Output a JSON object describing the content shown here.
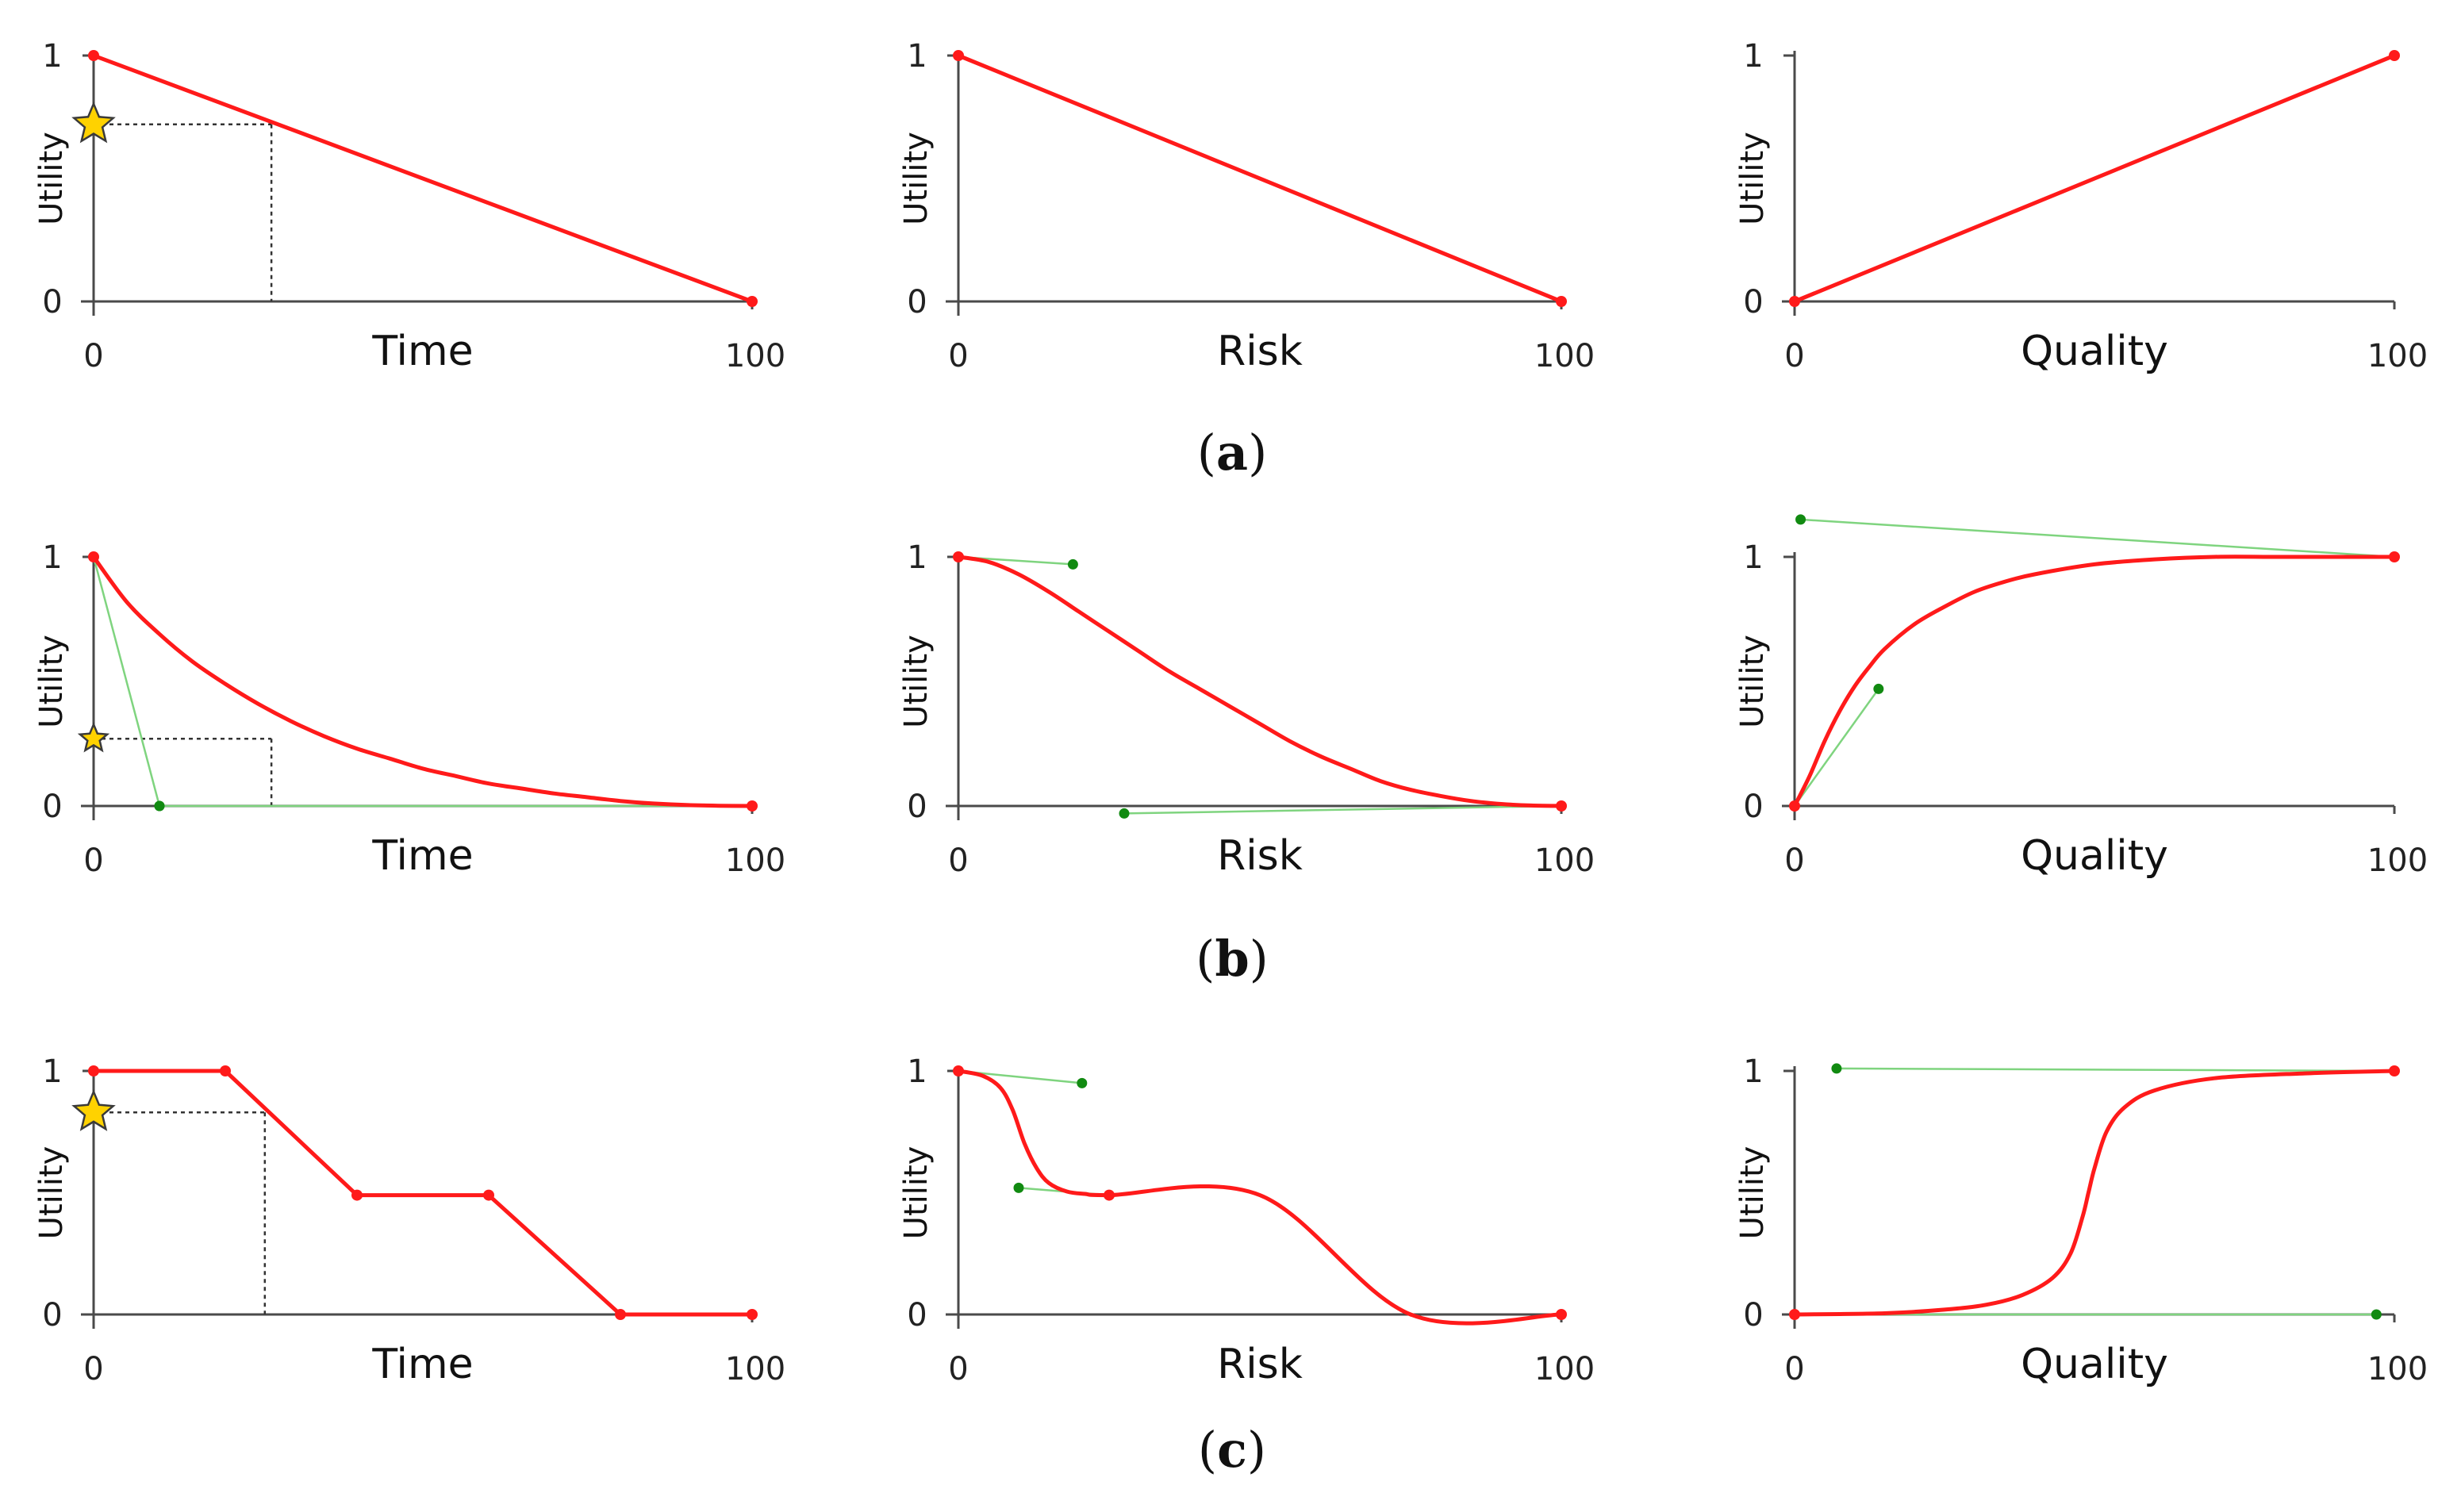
{
  "captions": [
    "a",
    "b",
    "c"
  ],
  "chart_data": [
    {
      "id": "a-time",
      "type": "line",
      "row": "a",
      "xlabel": "Time",
      "ylabel": "Utility",
      "xlim": [
        0,
        100
      ],
      "ylim": [
        0,
        1
      ],
      "xticks": [
        "0",
        "100"
      ],
      "yticks": [
        "0",
        "1"
      ],
      "series": [
        {
          "points": [
            [
              0,
              1
            ],
            [
              100,
              0
            ]
          ],
          "smooth": false
        }
      ],
      "handles": [],
      "marker": {
        "x": 27,
        "y": 0.72
      }
    },
    {
      "id": "a-risk",
      "type": "line",
      "row": "a",
      "xlabel": "Risk",
      "ylabel": "Utility",
      "xlim": [
        0,
        100
      ],
      "ylim": [
        0,
        1
      ],
      "xticks": [
        "0",
        "100"
      ],
      "yticks": [
        "0",
        "1"
      ],
      "series": [
        {
          "points": [
            [
              0,
              1
            ],
            [
              100,
              0
            ]
          ],
          "smooth": false
        }
      ],
      "handles": [],
      "marker": null
    },
    {
      "id": "a-quality",
      "type": "line",
      "row": "a",
      "xlabel": "Quality",
      "ylabel": "Utility",
      "xlim": [
        0,
        100
      ],
      "ylim": [
        0,
        1
      ],
      "xticks": [
        "0",
        "100"
      ],
      "yticks": [
        "0",
        "1"
      ],
      "series": [
        {
          "points": [
            [
              0,
              0
            ],
            [
              100,
              1
            ]
          ],
          "smooth": false
        }
      ],
      "handles": [],
      "marker": null
    },
    {
      "id": "b-time",
      "type": "line",
      "row": "b",
      "xlabel": "Time",
      "ylabel": "Utility",
      "xlim": [
        0,
        100
      ],
      "ylim": [
        0,
        1
      ],
      "xticks": [
        "0",
        "100"
      ],
      "yticks": [
        "0",
        "1"
      ],
      "series": [
        {
          "points": [
            [
              0,
              1
            ],
            [
              5,
              0.82
            ],
            [
              10,
              0.69
            ],
            [
              15,
              0.58
            ],
            [
              20,
              0.49
            ],
            [
              25,
              0.41
            ],
            [
              30,
              0.34
            ],
            [
              35,
              0.28
            ],
            [
              40,
              0.23
            ],
            [
              45,
              0.19
            ],
            [
              50,
              0.15
            ],
            [
              55,
              0.12
            ],
            [
              60,
              0.09
            ],
            [
              65,
              0.07
            ],
            [
              70,
              0.05
            ],
            [
              75,
              0.035
            ],
            [
              80,
              0.02
            ],
            [
              85,
              0.01
            ],
            [
              90,
              0.004
            ],
            [
              95,
              0.001
            ],
            [
              100,
              0
            ]
          ],
          "smooth": true
        }
      ],
      "handles": [
        {
          "from": [
            0,
            1
          ],
          "to": [
            10,
            0
          ]
        },
        {
          "from": [
            100,
            0
          ],
          "to": [
            10,
            0
          ]
        }
      ],
      "marker": {
        "x": 27,
        "y": 0.27
      }
    },
    {
      "id": "b-risk",
      "type": "line",
      "row": "b",
      "xlabel": "Risk",
      "ylabel": "Utility",
      "xlim": [
        0,
        100
      ],
      "ylim": [
        0,
        1
      ],
      "xticks": [
        "0",
        "100"
      ],
      "yticks": [
        "0",
        "1"
      ],
      "series": [
        {
          "points": [
            [
              0,
              1
            ],
            [
              5,
              0.98
            ],
            [
              10,
              0.93
            ],
            [
              15,
              0.86
            ],
            [
              20,
              0.78
            ],
            [
              25,
              0.7
            ],
            [
              30,
              0.62
            ],
            [
              35,
              0.54
            ],
            [
              40,
              0.47
            ],
            [
              45,
              0.4
            ],
            [
              50,
              0.33
            ],
            [
              55,
              0.26
            ],
            [
              60,
              0.2
            ],
            [
              65,
              0.15
            ],
            [
              70,
              0.1
            ],
            [
              75,
              0.065
            ],
            [
              80,
              0.04
            ],
            [
              85,
              0.02
            ],
            [
              90,
              0.008
            ],
            [
              95,
              0.002
            ],
            [
              100,
              0
            ]
          ],
          "smooth": true
        }
      ],
      "handles": [
        {
          "from": [
            0,
            1
          ],
          "to": [
            19,
            0.97
          ]
        },
        {
          "from": [
            100,
            0
          ],
          "to": [
            27.5,
            -0.03
          ]
        }
      ],
      "marker": null
    },
    {
      "id": "b-quality",
      "type": "line",
      "row": "b",
      "xlabel": "Quality",
      "ylabel": "Utility",
      "xlim": [
        0,
        100
      ],
      "ylim": [
        0,
        1
      ],
      "xticks": [
        "0",
        "100"
      ],
      "yticks": [
        "0",
        "1"
      ],
      "series": [
        {
          "points": [
            [
              0,
              0
            ],
            [
              2.5,
              0.12
            ],
            [
              5,
              0.26
            ],
            [
              7.5,
              0.38
            ],
            [
              10,
              0.48
            ],
            [
              12.5,
              0.56
            ],
            [
              15,
              0.63
            ],
            [
              20,
              0.73
            ],
            [
              25,
              0.8
            ],
            [
              30,
              0.86
            ],
            [
              35,
              0.9
            ],
            [
              40,
              0.93
            ],
            [
              50,
              0.97
            ],
            [
              60,
              0.99
            ],
            [
              70,
              1.0
            ],
            [
              80,
              1.0
            ],
            [
              90,
              1.0
            ],
            [
              100,
              1.0
            ]
          ],
          "smooth": true
        }
      ],
      "handles": [
        {
          "from": [
            0,
            0
          ],
          "to": [
            14,
            0.47
          ]
        },
        {
          "from": [
            100,
            1
          ],
          "to": [
            1,
            1.15
          ]
        }
      ],
      "marker": null
    },
    {
      "id": "c-time",
      "type": "line",
      "row": "c",
      "xlabel": "Time",
      "ylabel": "Utility",
      "xlim": [
        0,
        100
      ],
      "ylim": [
        0,
        1
      ],
      "xticks": [
        "0",
        "100"
      ],
      "yticks": [
        "0",
        "1"
      ],
      "series": [
        {
          "points": [
            [
              0,
              1
            ],
            [
              20,
              1
            ],
            [
              40,
              0.49
            ],
            [
              60,
              0.49
            ],
            [
              80,
              0
            ],
            [
              100,
              0
            ]
          ],
          "smooth": false
        }
      ],
      "handles": [],
      "marker": {
        "x": 26,
        "y": 0.83
      }
    },
    {
      "id": "c-risk",
      "type": "line",
      "row": "c",
      "xlabel": "Risk",
      "ylabel": "Utility",
      "xlim": [
        0,
        100
      ],
      "ylim": [
        0,
        1
      ],
      "xticks": [
        "0",
        "100"
      ],
      "yticks": [
        "0",
        "1"
      ],
      "series": [
        {
          "points": [
            [
              0,
              1
            ],
            [
              4,
              0.98
            ],
            [
              7,
              0.93
            ],
            [
              9,
              0.84
            ],
            [
              11,
              0.7
            ],
            [
              13,
              0.6
            ],
            [
              15,
              0.54
            ],
            [
              18,
              0.505
            ],
            [
              21,
              0.495
            ],
            [
              25,
              0.49
            ],
            [
              50,
              0.49
            ],
            [
              75,
              0
            ],
            [
              100,
              0
            ]
          ],
          "smooth": true
        }
      ],
      "handles": [
        {
          "from": [
            0,
            1
          ],
          "to": [
            20.5,
            0.95
          ]
        },
        {
          "from": [
            25,
            0.49
          ],
          "to": [
            10,
            0.52
          ]
        }
      ],
      "marker": null
    },
    {
      "id": "c-quality",
      "type": "line",
      "row": "c",
      "xlabel": "Quality",
      "ylabel": "Utility",
      "xlim": [
        0,
        100
      ],
      "ylim": [
        0,
        1
      ],
      "xticks": [
        "0",
        "100"
      ],
      "yticks": [
        "0",
        "1"
      ],
      "series": [
        {
          "points": [
            [
              0,
              0
            ],
            [
              15,
              0.005
            ],
            [
              25,
              0.02
            ],
            [
              32,
              0.04
            ],
            [
              38,
              0.08
            ],
            [
              43,
              0.15
            ],
            [
              46,
              0.25
            ],
            [
              48,
              0.4
            ],
            [
              49,
              0.5
            ],
            [
              50,
              0.6
            ],
            [
              52,
              0.75
            ],
            [
              55,
              0.85
            ],
            [
              60,
              0.92
            ],
            [
              70,
              0.97
            ],
            [
              85,
              0.99
            ],
            [
              100,
              1.0
            ]
          ],
          "smooth": true
        }
      ],
      "handles": [
        {
          "from": [
            0,
            0
          ],
          "to": [
            97,
            0
          ]
        },
        {
          "from": [
            100,
            1
          ],
          "to": [
            7,
            1.01
          ]
        }
      ],
      "marker": null
    }
  ]
}
